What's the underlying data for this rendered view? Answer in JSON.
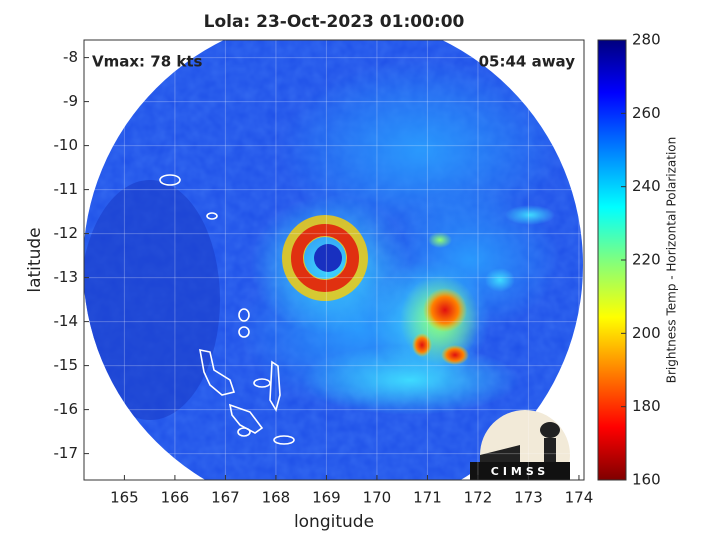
{
  "chart_data": {
    "type": "image",
    "title": "Lola: 23-Oct-2023 01:00:00",
    "annotations": [
      "Vmax: 78 kts",
      "05:44 away"
    ],
    "xlabel": "longitude",
    "ylabel": "latitude",
    "xlim": [
      164.2,
      174.1
    ],
    "xticks": [
      165,
      166,
      167,
      168,
      169,
      170,
      171,
      172,
      173,
      174
    ],
    "ylim": [
      -17.6,
      -7.6
    ],
    "yticks": [
      -8,
      -9,
      -10,
      -11,
      -12,
      -13,
      -14,
      -15,
      -16,
      -17
    ],
    "grid": true,
    "colorbar": {
      "label": "Brightness Temp - Horizontal Polarization",
      "clim": [
        160,
        280
      ],
      "ticks": [
        160,
        180,
        200,
        220,
        240,
        260,
        280
      ]
    },
    "logo": "CIMSS"
  }
}
